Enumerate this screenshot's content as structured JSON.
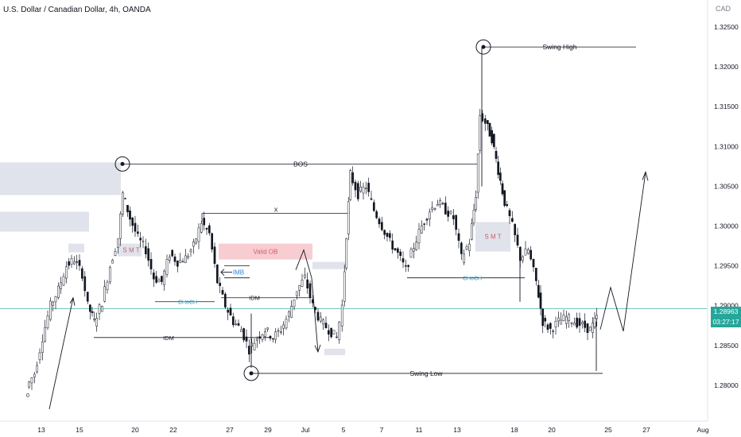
{
  "header": {
    "title": "U.S. Dollar / Canadian Dollar, 4h, OANDA",
    "currency": "CAD"
  },
  "last_price": {
    "value": "1.28963",
    "countdown": "03:27:17",
    "color": "#26a69a"
  },
  "chart_data": {
    "type": "candlestick",
    "symbol": "USDCAD",
    "timeframe": "4h",
    "ylim": [
      1.2775,
      1.327
    ],
    "y_ticks": [
      "1.32500",
      "1.32000",
      "1.31500",
      "1.31000",
      "1.30500",
      "1.30000",
      "1.29500",
      "1.29000",
      "1.28500",
      "1.28000"
    ],
    "x_ticks": [
      "13",
      "15",
      "20",
      "22",
      "27",
      "29",
      "Jul",
      "5",
      "7",
      "11",
      "13",
      "18",
      "20",
      "25",
      "27",
      "Aug"
    ],
    "annotations": {
      "bos": "BOS",
      "swing_high": "Swing High",
      "swing_low": "Swing Low",
      "smt_left": "S M T",
      "smt_right": "S M T",
      "choch_left": "CHoCH",
      "choch_right": "CHoCH",
      "valid_ob": "Valid OB",
      "imb": "IMB",
      "idm_left": "IDM",
      "idm_right": "IDM",
      "x_mark": "X",
      "partial_tag": "0"
    },
    "key_levels": {
      "swing_high": 1.3225,
      "bos": 1.3078,
      "swing_low": 1.2815,
      "choch_left": 1.2905,
      "choch_right": 1.2935,
      "idm_left": 1.286,
      "idm_right": 1.291,
      "x_level": 1.3016,
      "valid_ob_top": 1.2978,
      "valid_ob_bottom": 1.2958
    },
    "colors": {
      "up": "#131722",
      "down": "#131722",
      "zone": "#e0e3eb",
      "valid_ob": "#f7cdd1",
      "smt_text": "#d05a6e",
      "choch_text": "#2c9fbc",
      "imb_text": "#1e88e5",
      "valid_ob_text": "#d05a6e",
      "price_line": "#26a69a"
    }
  }
}
